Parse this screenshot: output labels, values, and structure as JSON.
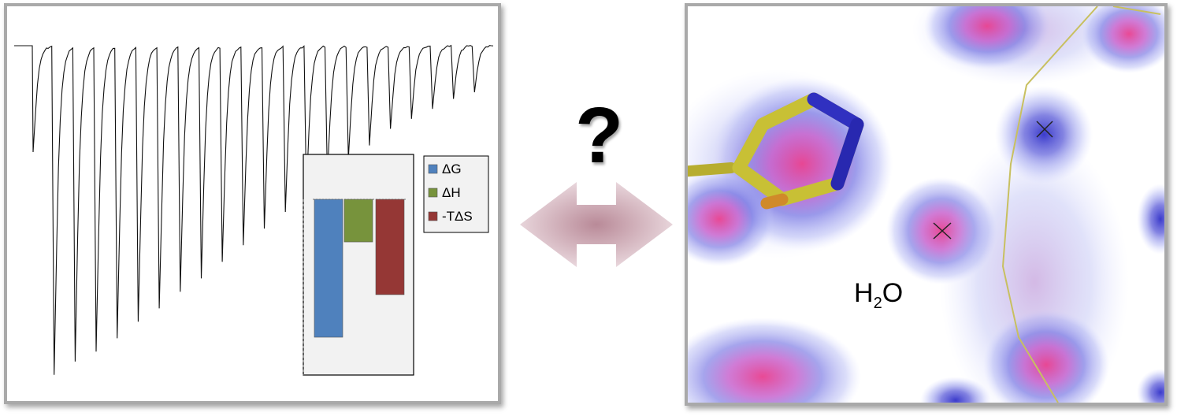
{
  "chart_data": {
    "type": "bar",
    "categories": [
      "ΔG",
      "ΔH",
      "-TΔS"
    ],
    "values": [
      -3.4,
      -1.05,
      -2.35
    ],
    "colors": [
      "#4f81bd",
      "#77933c",
      "#953735"
    ],
    "legend_position": "right",
    "grid": false
  },
  "itc_trace": {
    "peak_depths": [
      0.32,
      0.99,
      0.95,
      0.92,
      0.88,
      0.83,
      0.79,
      0.74,
      0.7,
      0.65,
      0.6,
      0.55,
      0.5,
      0.44,
      0.39,
      0.34,
      0.3,
      0.25,
      0.22,
      0.19,
      0.16,
      0.14
    ]
  },
  "connector": {
    "question_mark": "?",
    "arrow_color": "#d2aeb8"
  },
  "structure": {
    "water_label_main": "H",
    "water_label_sub": "2",
    "water_label_tail": "O"
  }
}
